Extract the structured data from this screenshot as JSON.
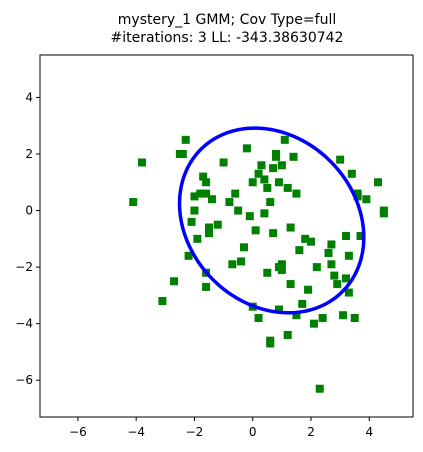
{
  "chart_data": {
    "type": "scatter",
    "title_line1": "mystery_1 GMM; Cov Type=full",
    "title_line2": "#iterations: 3 LL: -343.38630742",
    "xlabel": "",
    "ylabel": "",
    "xlim": [
      -7.3,
      5.5
    ],
    "ylim": [
      -7.3,
      5.5
    ],
    "xticks": [
      -6,
      -4,
      -2,
      0,
      2,
      4
    ],
    "yticks": [
      -6,
      -4,
      -2,
      0,
      2,
      4
    ],
    "xtick_labels": [
      "−6",
      "−4",
      "−2",
      "0",
      "2",
      "4"
    ],
    "ytick_labels": [
      "−6",
      "−4",
      "−2",
      "0",
      "2",
      "4"
    ],
    "grid": false,
    "marker": "square",
    "marker_color": "#008000",
    "ellipse_color": "#0000ff",
    "ellipse": {
      "center": [
        0.65,
        -0.35
      ],
      "semi_major": 3.5,
      "semi_minor": 2.9,
      "angle_deg": -50
    },
    "points": [
      [
        -4.1,
        0.3
      ],
      [
        -3.8,
        1.7
      ],
      [
        -3.1,
        -3.2
      ],
      [
        -2.7,
        -2.5
      ],
      [
        -2.5,
        2.0
      ],
      [
        -2.4,
        2.0
      ],
      [
        -2.3,
        2.5
      ],
      [
        -2.2,
        -1.6
      ],
      [
        -2.1,
        -0.4
      ],
      [
        -2.0,
        0.5
      ],
      [
        -2.0,
        0.0
      ],
      [
        -1.9,
        -1.0
      ],
      [
        -1.8,
        0.6
      ],
      [
        -1.7,
        1.2
      ],
      [
        -1.6,
        0.6
      ],
      [
        -1.6,
        1.0
      ],
      [
        -1.6,
        -2.2
      ],
      [
        -1.6,
        -2.7
      ],
      [
        -1.5,
        -0.6
      ],
      [
        -1.5,
        -0.8
      ],
      [
        -1.4,
        0.4
      ],
      [
        -1.2,
        -0.5
      ],
      [
        -1.0,
        1.7
      ],
      [
        -0.8,
        0.3
      ],
      [
        -0.7,
        -1.9
      ],
      [
        -0.6,
        0.6
      ],
      [
        -0.5,
        0.0
      ],
      [
        -0.4,
        -1.8
      ],
      [
        -0.3,
        -1.3
      ],
      [
        -0.2,
        2.2
      ],
      [
        -0.1,
        -0.2
      ],
      [
        0.0,
        1.0
      ],
      [
        0.0,
        -3.4
      ],
      [
        0.1,
        -0.7
      ],
      [
        0.2,
        1.3
      ],
      [
        0.2,
        -3.8
      ],
      [
        0.3,
        1.6
      ],
      [
        0.4,
        -0.1
      ],
      [
        0.4,
        1.1
      ],
      [
        0.5,
        0.8
      ],
      [
        0.5,
        -2.2
      ],
      [
        0.6,
        0.3
      ],
      [
        0.6,
        -4.6
      ],
      [
        0.6,
        -4.7
      ],
      [
        0.7,
        1.5
      ],
      [
        0.7,
        -0.8
      ],
      [
        0.8,
        1.9
      ],
      [
        0.8,
        2.0
      ],
      [
        0.9,
        1.0
      ],
      [
        0.9,
        -2.0
      ],
      [
        0.9,
        -3.5
      ],
      [
        1.0,
        1.6
      ],
      [
        1.0,
        -1.9
      ],
      [
        1.0,
        -2.1
      ],
      [
        1.1,
        2.5
      ],
      [
        1.2,
        0.8
      ],
      [
        1.2,
        -4.4
      ],
      [
        1.3,
        -2.6
      ],
      [
        1.3,
        -0.6
      ],
      [
        1.4,
        1.9
      ],
      [
        1.5,
        0.6
      ],
      [
        1.5,
        -3.7
      ],
      [
        1.6,
        -1.4
      ],
      [
        1.7,
        -3.3
      ],
      [
        1.8,
        -1.0
      ],
      [
        1.9,
        -2.8
      ],
      [
        2.0,
        -1.1
      ],
      [
        2.1,
        -4.0
      ],
      [
        2.2,
        -2.0
      ],
      [
        2.3,
        -6.3
      ],
      [
        2.4,
        -3.8
      ],
      [
        2.6,
        -1.5
      ],
      [
        2.7,
        -1.2
      ],
      [
        2.7,
        -1.9
      ],
      [
        2.8,
        -2.3
      ],
      [
        2.9,
        -2.6
      ],
      [
        3.0,
        1.8
      ],
      [
        3.1,
        -3.7
      ],
      [
        3.2,
        -0.9
      ],
      [
        3.2,
        -2.4
      ],
      [
        3.3,
        -1.6
      ],
      [
        3.3,
        -2.9
      ],
      [
        3.4,
        1.3
      ],
      [
        3.5,
        -3.8
      ],
      [
        3.6,
        0.5
      ],
      [
        3.6,
        0.6
      ],
      [
        3.7,
        -0.9
      ],
      [
        3.9,
        0.4
      ],
      [
        4.3,
        1.0
      ],
      [
        4.5,
        0.0
      ],
      [
        4.5,
        -0.1
      ]
    ]
  }
}
